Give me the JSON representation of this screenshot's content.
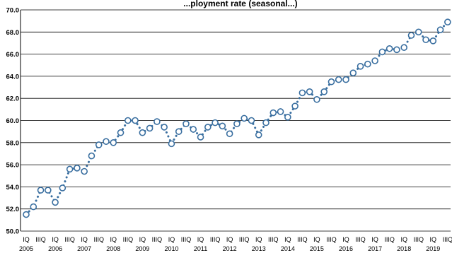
{
  "chart_data": {
    "type": "line",
    "title": "...ployment rate (seasonal...)",
    "xlabel": "",
    "ylabel": "",
    "ylim": [
      50.0,
      70.0
    ],
    "y_ticks": [
      "50.0",
      "52.0",
      "54.0",
      "56.0",
      "58.0",
      "60.0",
      "62.0",
      "64.0",
      "66.0",
      "68.0",
      "70.0"
    ],
    "grid": true,
    "legend": "none",
    "marker": "open-circle",
    "line_style": "dotted",
    "colors": {
      "series": "#3a6fa0",
      "grid": "#000000"
    },
    "quarter_labels": [
      "IQ",
      "IIIQ"
    ],
    "last_quarter_label": "IIIQ",
    "years": [
      "2005",
      "2006",
      "2007",
      "2008",
      "2009",
      "2010",
      "2011",
      "2012",
      "2013",
      "2014",
      "2015",
      "2016",
      "2017",
      "2018",
      "2019"
    ],
    "series": [
      {
        "values": [
          51.5,
          52.2,
          53.7,
          53.7,
          52.6,
          53.9,
          55.6,
          55.7,
          55.4,
          56.8,
          57.8,
          58.1,
          58.0,
          58.9,
          60.0,
          60.0,
          58.9,
          59.3,
          59.9,
          59.4,
          57.9,
          59.0,
          59.7,
          59.2,
          58.5,
          59.4,
          59.8,
          59.5,
          58.8,
          59.7,
          60.2,
          60.0,
          58.7,
          59.8,
          60.7,
          60.8,
          60.3,
          61.3,
          62.5,
          62.6,
          61.9,
          62.6,
          63.5,
          63.7,
          63.7,
          64.3,
          64.9,
          65.1,
          65.4,
          66.2,
          66.5,
          66.4,
          66.6,
          67.7,
          68.0,
          67.3,
          67.2,
          68.2,
          68.9
        ]
      }
    ]
  }
}
